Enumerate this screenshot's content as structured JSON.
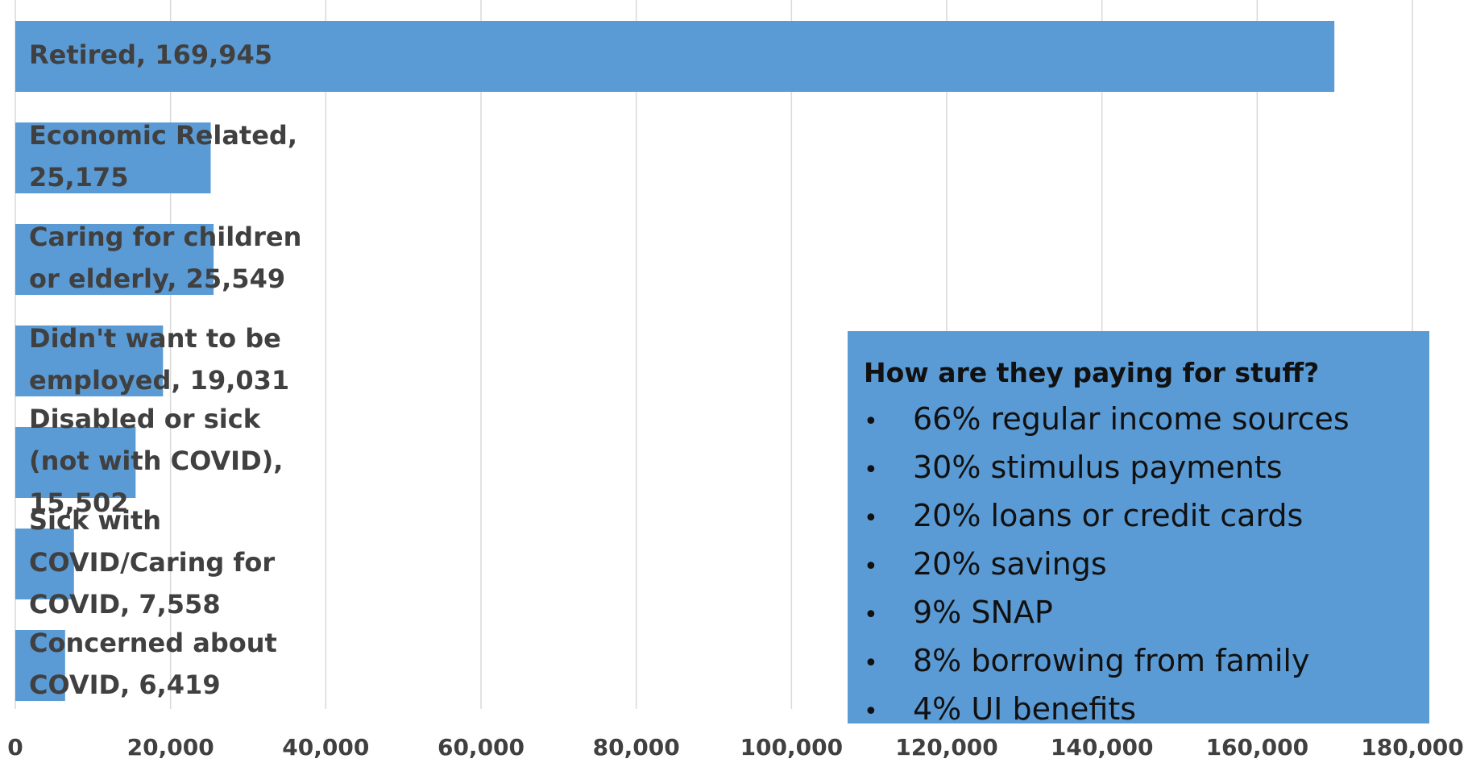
{
  "chart_data": {
    "type": "bar",
    "orientation": "horizontal",
    "categories": [
      "Retired",
      "Economic Related",
      "Caring for children or elderly",
      "Didn't want to be employed",
      "Disabled or sick (not with COVID)",
      "Sick with COVID/Caring for COVID",
      "Concerned about COVID"
    ],
    "values": [
      169945,
      25175,
      25549,
      19031,
      15502,
      7558,
      6419
    ],
    "data_labels": [
      [
        "Retired, 169,945"
      ],
      [
        "Economic Related,",
        "25,175"
      ],
      [
        "Caring for children",
        "or elderly, 25,549"
      ],
      [
        "Didn't want to be",
        "employed, 19,031"
      ],
      [
        "Disabled or sick",
        "(not with COVID),",
        "15,502"
      ],
      [
        "Sick with",
        "COVID/Caring for",
        "COVID, 7,558"
      ],
      [
        "Concerned about",
        "COVID, 6,419"
      ]
    ],
    "x_ticks": [
      "0",
      "20,000",
      "40,000",
      "60,000",
      "80,000",
      "100,000",
      "120,000",
      "140,000",
      "160,000",
      "180,000"
    ],
    "xlim": [
      0,
      180000
    ],
    "grid": "vertical",
    "bar_color": "#5b9bd5",
    "label_color": "#404040"
  },
  "callout": {
    "title": "How are they paying for stuff?",
    "bullet": "•",
    "items": [
      "66% regular income sources",
      "30% stimulus payments",
      "20% loans or credit cards",
      "20% savings",
      "9% SNAP",
      "8% borrowing from family",
      "4% UI benefits"
    ],
    "background": "#5b9bd5"
  }
}
